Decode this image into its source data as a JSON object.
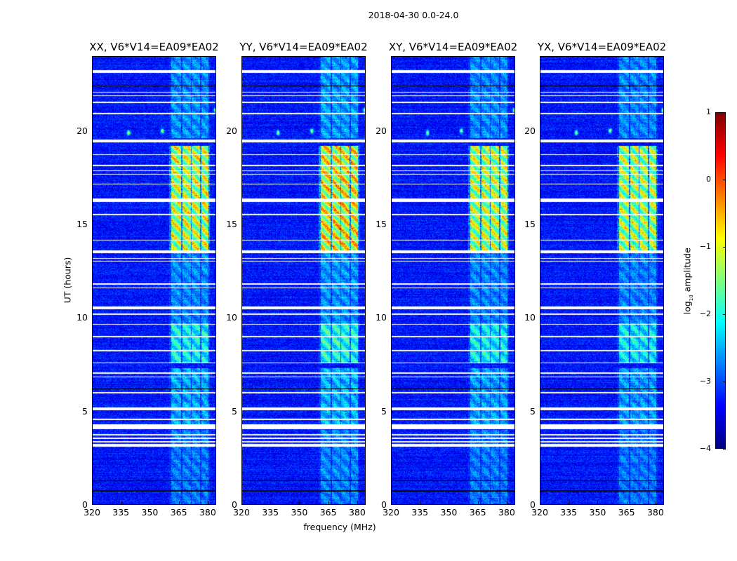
{
  "chart_data": {
    "type": "heatmap",
    "title": "2018-04-30 0.0-24.0",
    "xlabel": "frequency (MHz)",
    "ylabel": "UT (hours)",
    "xlim": [
      320,
      384.4
    ],
    "ylim": [
      0,
      24
    ],
    "xticks": [
      320,
      335,
      350,
      365,
      380
    ],
    "xtick_labels": [
      "320",
      "335",
      "350",
      "365",
      "380"
    ],
    "yticks": [
      0,
      5,
      10,
      15,
      20
    ],
    "ytick_labels": [
      "0",
      "5",
      "10",
      "15",
      "20"
    ],
    "colormap": "jet",
    "colorbar": {
      "label_main": "log",
      "label_sub": "10",
      "label_rest": " amplitude",
      "range": [
        -4,
        1
      ],
      "ticks": [
        1,
        0,
        -1,
        -2,
        -3,
        -4
      ],
      "tick_labels": [
        "1",
        "0",
        "−1",
        "−2",
        "−3",
        "−4"
      ]
    },
    "background_log_amp": -3.3,
    "panels": [
      {
        "title": "XX, V6*V14=EA09*EA02",
        "peak_log_amp": -0.4
      },
      {
        "title": "YY, V6*V14=EA09*EA02",
        "peak_log_amp": -0.1
      },
      {
        "title": "XY, V6*V14=EA09*EA02",
        "peak_log_amp": -0.5
      },
      {
        "title": "YX, V6*V14=EA09*EA02",
        "peak_log_amp": -0.6
      }
    ],
    "flagged_hours": [
      [
        23.1,
        23.25
      ],
      [
        22.05,
        22.1
      ],
      [
        21.85,
        21.9
      ],
      [
        21.5,
        21.58
      ],
      [
        20.88,
        20.95
      ],
      [
        19.4,
        19.55
      ],
      [
        18.7,
        18.76
      ],
      [
        18.13,
        18.19
      ],
      [
        17.85,
        17.9
      ],
      [
        17.65,
        17.7
      ],
      [
        17.12,
        17.18
      ],
      [
        16.2,
        16.38
      ],
      [
        15.5,
        15.57
      ],
      [
        14.13,
        14.19
      ],
      [
        13.45,
        13.6
      ],
      [
        13.15,
        13.2
      ],
      [
        13.0,
        13.05
      ],
      [
        11.78,
        11.84
      ],
      [
        11.58,
        11.64
      ],
      [
        10.45,
        10.6
      ],
      [
        10.16,
        10.22
      ],
      [
        9.63,
        9.69
      ],
      [
        8.96,
        9.02
      ],
      [
        8.21,
        8.27
      ],
      [
        7.57,
        7.63
      ],
      [
        7.01,
        7.07
      ],
      [
        6.82,
        6.88
      ],
      [
        5.96,
        6.02
      ],
      [
        5.05,
        5.2
      ],
      [
        4.54,
        4.6
      ],
      [
        4.05,
        4.3
      ],
      [
        3.72,
        3.78
      ],
      [
        3.53,
        3.59
      ],
      [
        3.34,
        3.4
      ],
      [
        3.1,
        3.25
      ]
    ],
    "dark_rows_hours": [
      22.4,
      6.2,
      1.3,
      0.75
    ],
    "rfi_channels_mhz": [
      [
        361,
        366.2
      ],
      [
        366.8,
        371.2
      ],
      [
        371.8,
        376.2
      ],
      [
        376.8,
        380.5
      ]
    ],
    "active_periods": [
      {
        "hours": [
          13.6,
          19.2
        ],
        "level": 1.0
      },
      {
        "hours": [
          7.6,
          9.7
        ],
        "level": 0.55
      },
      {
        "hours": [
          4.3,
          7.3
        ],
        "level": 0.35
      },
      {
        "hours": [
          19.6,
          24
        ],
        "level": 0.3
      },
      {
        "hours": [
          0,
          4.0
        ],
        "level": 0.25
      },
      {
        "hours": [
          9.7,
          13.5
        ],
        "level": 0.28
      }
    ],
    "point_sources": [
      {
        "freq": 339,
        "hour": 19.9
      },
      {
        "freq": 384,
        "hour": 21.1
      },
      {
        "freq": 356.5,
        "hour": 20.0
      }
    ]
  }
}
